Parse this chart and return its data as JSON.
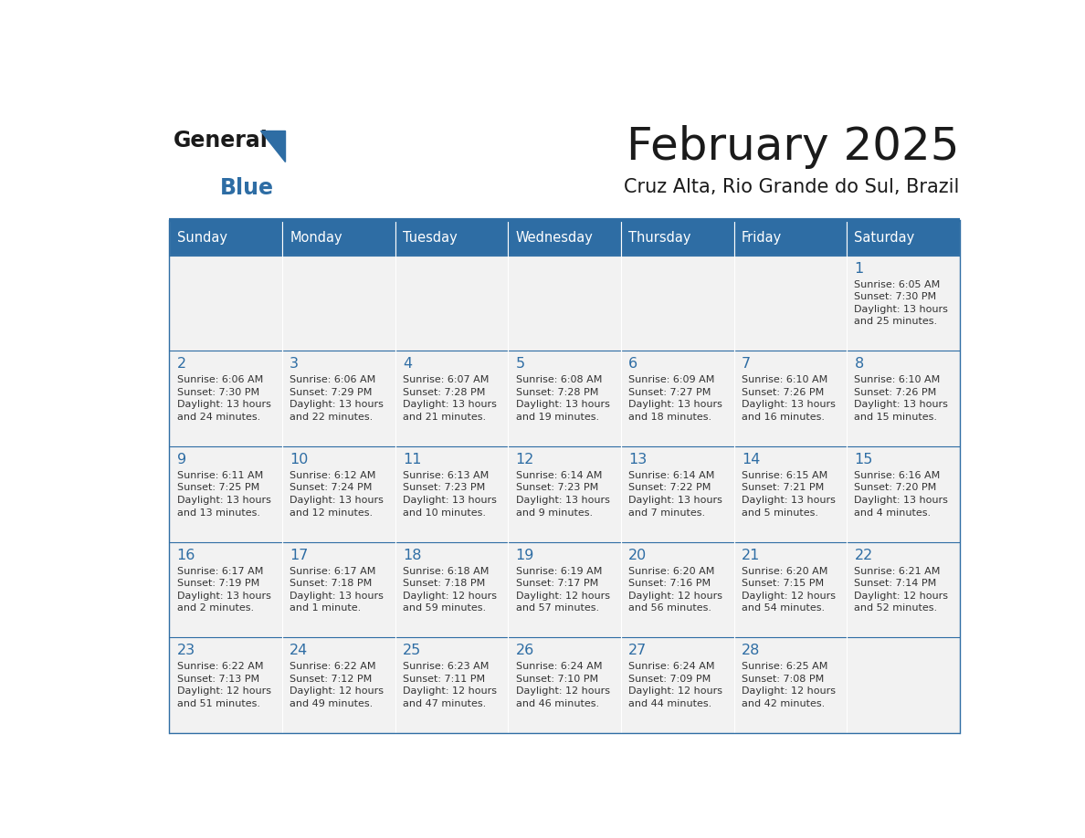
{
  "title": "February 2025",
  "subtitle": "Cruz Alta, Rio Grande do Sul, Brazil",
  "days_of_week": [
    "Sunday",
    "Monday",
    "Tuesday",
    "Wednesday",
    "Thursday",
    "Friday",
    "Saturday"
  ],
  "header_bg": "#2E6DA4",
  "header_fg": "#FFFFFF",
  "cell_bg": "#F2F2F2",
  "border_color": "#2E6DA4",
  "title_color": "#1a1a1a",
  "subtitle_color": "#1a1a1a",
  "day_num_color": "#2E6DA4",
  "text_color": "#333333",
  "logo_general_color": "#1a1a1a",
  "logo_blue_color": "#2E6DA4",
  "weeks": [
    [
      {
        "day": null,
        "info": null
      },
      {
        "day": null,
        "info": null
      },
      {
        "day": null,
        "info": null
      },
      {
        "day": null,
        "info": null
      },
      {
        "day": null,
        "info": null
      },
      {
        "day": null,
        "info": null
      },
      {
        "day": 1,
        "info": "Sunrise: 6:05 AM\nSunset: 7:30 PM\nDaylight: 13 hours\nand 25 minutes."
      }
    ],
    [
      {
        "day": 2,
        "info": "Sunrise: 6:06 AM\nSunset: 7:30 PM\nDaylight: 13 hours\nand 24 minutes."
      },
      {
        "day": 3,
        "info": "Sunrise: 6:06 AM\nSunset: 7:29 PM\nDaylight: 13 hours\nand 22 minutes."
      },
      {
        "day": 4,
        "info": "Sunrise: 6:07 AM\nSunset: 7:28 PM\nDaylight: 13 hours\nand 21 minutes."
      },
      {
        "day": 5,
        "info": "Sunrise: 6:08 AM\nSunset: 7:28 PM\nDaylight: 13 hours\nand 19 minutes."
      },
      {
        "day": 6,
        "info": "Sunrise: 6:09 AM\nSunset: 7:27 PM\nDaylight: 13 hours\nand 18 minutes."
      },
      {
        "day": 7,
        "info": "Sunrise: 6:10 AM\nSunset: 7:26 PM\nDaylight: 13 hours\nand 16 minutes."
      },
      {
        "day": 8,
        "info": "Sunrise: 6:10 AM\nSunset: 7:26 PM\nDaylight: 13 hours\nand 15 minutes."
      }
    ],
    [
      {
        "day": 9,
        "info": "Sunrise: 6:11 AM\nSunset: 7:25 PM\nDaylight: 13 hours\nand 13 minutes."
      },
      {
        "day": 10,
        "info": "Sunrise: 6:12 AM\nSunset: 7:24 PM\nDaylight: 13 hours\nand 12 minutes."
      },
      {
        "day": 11,
        "info": "Sunrise: 6:13 AM\nSunset: 7:23 PM\nDaylight: 13 hours\nand 10 minutes."
      },
      {
        "day": 12,
        "info": "Sunrise: 6:14 AM\nSunset: 7:23 PM\nDaylight: 13 hours\nand 9 minutes."
      },
      {
        "day": 13,
        "info": "Sunrise: 6:14 AM\nSunset: 7:22 PM\nDaylight: 13 hours\nand 7 minutes."
      },
      {
        "day": 14,
        "info": "Sunrise: 6:15 AM\nSunset: 7:21 PM\nDaylight: 13 hours\nand 5 minutes."
      },
      {
        "day": 15,
        "info": "Sunrise: 6:16 AM\nSunset: 7:20 PM\nDaylight: 13 hours\nand 4 minutes."
      }
    ],
    [
      {
        "day": 16,
        "info": "Sunrise: 6:17 AM\nSunset: 7:19 PM\nDaylight: 13 hours\nand 2 minutes."
      },
      {
        "day": 17,
        "info": "Sunrise: 6:17 AM\nSunset: 7:18 PM\nDaylight: 13 hours\nand 1 minute."
      },
      {
        "day": 18,
        "info": "Sunrise: 6:18 AM\nSunset: 7:18 PM\nDaylight: 12 hours\nand 59 minutes."
      },
      {
        "day": 19,
        "info": "Sunrise: 6:19 AM\nSunset: 7:17 PM\nDaylight: 12 hours\nand 57 minutes."
      },
      {
        "day": 20,
        "info": "Sunrise: 6:20 AM\nSunset: 7:16 PM\nDaylight: 12 hours\nand 56 minutes."
      },
      {
        "day": 21,
        "info": "Sunrise: 6:20 AM\nSunset: 7:15 PM\nDaylight: 12 hours\nand 54 minutes."
      },
      {
        "day": 22,
        "info": "Sunrise: 6:21 AM\nSunset: 7:14 PM\nDaylight: 12 hours\nand 52 minutes."
      }
    ],
    [
      {
        "day": 23,
        "info": "Sunrise: 6:22 AM\nSunset: 7:13 PM\nDaylight: 12 hours\nand 51 minutes."
      },
      {
        "day": 24,
        "info": "Sunrise: 6:22 AM\nSunset: 7:12 PM\nDaylight: 12 hours\nand 49 minutes."
      },
      {
        "day": 25,
        "info": "Sunrise: 6:23 AM\nSunset: 7:11 PM\nDaylight: 12 hours\nand 47 minutes."
      },
      {
        "day": 26,
        "info": "Sunrise: 6:24 AM\nSunset: 7:10 PM\nDaylight: 12 hours\nand 46 minutes."
      },
      {
        "day": 27,
        "info": "Sunrise: 6:24 AM\nSunset: 7:09 PM\nDaylight: 12 hours\nand 44 minutes."
      },
      {
        "day": 28,
        "info": "Sunrise: 6:25 AM\nSunset: 7:08 PM\nDaylight: 12 hours\nand 42 minutes."
      },
      {
        "day": null,
        "info": null
      }
    ]
  ]
}
